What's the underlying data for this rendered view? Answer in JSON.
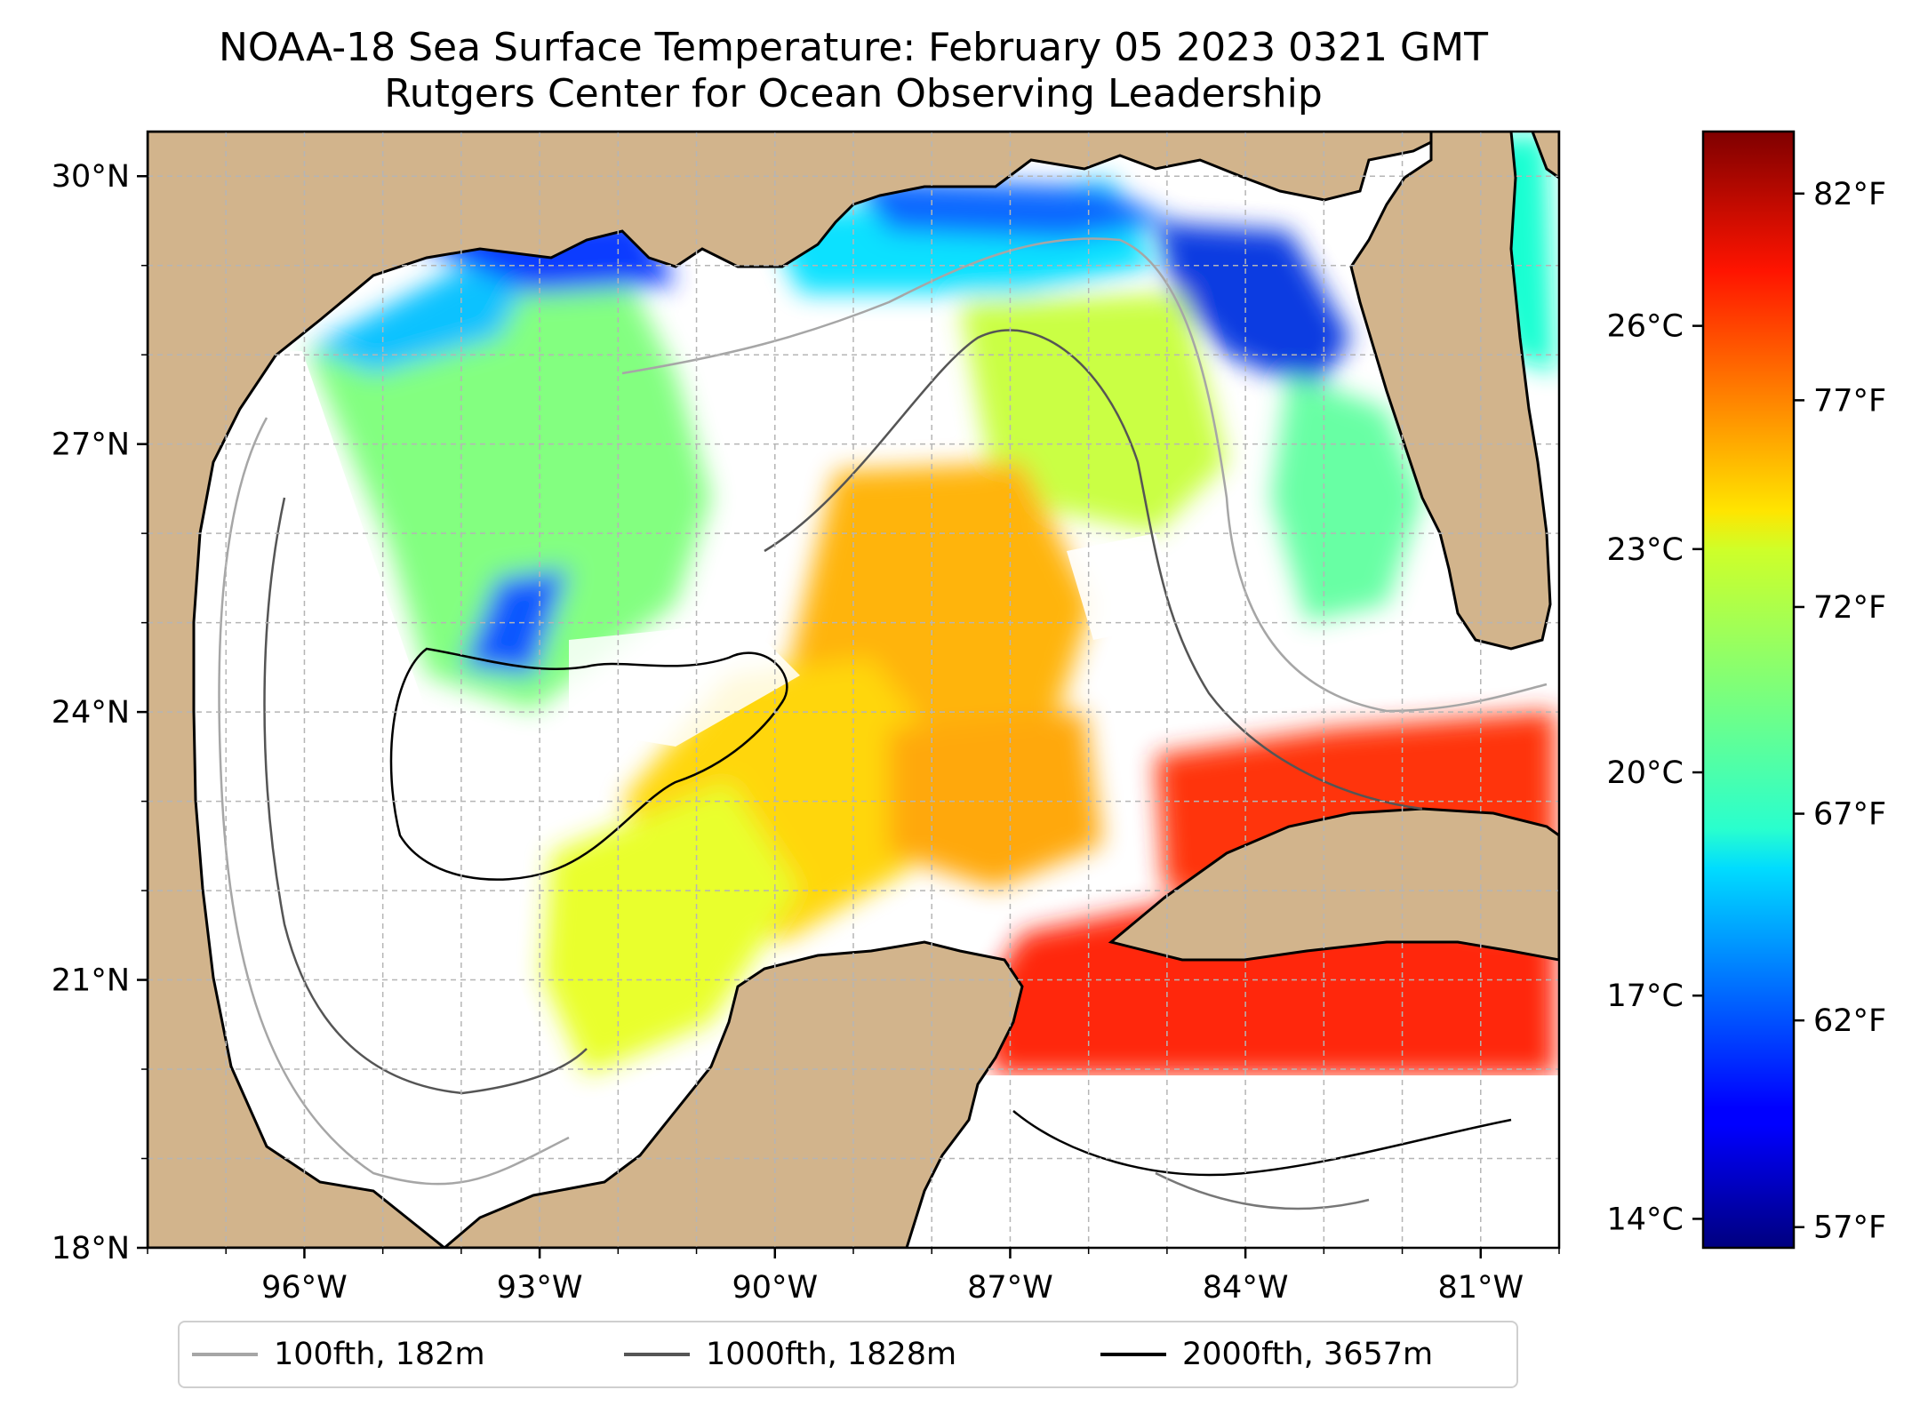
{
  "title": {
    "line1": "NOAA-18 Sea Surface Temperature: February 05 2023 0321 GMT",
    "line2": "Rutgers Center for Ocean Observing Leadership"
  },
  "map": {
    "lon_range": [
      -98,
      -80
    ],
    "lat_range": [
      18,
      30.5
    ],
    "lat_ticks": [
      {
        "value": 30,
        "label": "30°N"
      },
      {
        "value": 27,
        "label": "27°N"
      },
      {
        "value": 24,
        "label": "24°N"
      },
      {
        "value": 21,
        "label": "21°N"
      },
      {
        "value": 18,
        "label": "18°N"
      }
    ],
    "lon_ticks": [
      {
        "value": -96,
        "label": "96°W"
      },
      {
        "value": -93,
        "label": "93°W"
      },
      {
        "value": -90,
        "label": "90°W"
      },
      {
        "value": -87,
        "label": "87°W"
      },
      {
        "value": -84,
        "label": "84°W"
      },
      {
        "value": -81,
        "label": "81°W"
      }
    ],
    "land_color": "#d2b48c",
    "gridlines": true
  },
  "colorbar": {
    "colormap": "jet",
    "celsius_ticks": [
      "26°C",
      "23°C",
      "20°C",
      "17°C",
      "14°C"
    ],
    "fahrenheit_ticks": [
      "82°F",
      "77°F",
      "72°F",
      "67°F",
      "62°F",
      "57°F"
    ],
    "fahrenheit_range": [
      56.5,
      83.5
    ]
  },
  "legend": {
    "placement": "bottom",
    "items": [
      {
        "label": "100fth, 182m",
        "color": "#a6a6a6"
      },
      {
        "label": "1000fth, 1828m",
        "color": "#555555"
      },
      {
        "label": "2000fth, 3657m",
        "color": "#000000"
      }
    ]
  }
}
